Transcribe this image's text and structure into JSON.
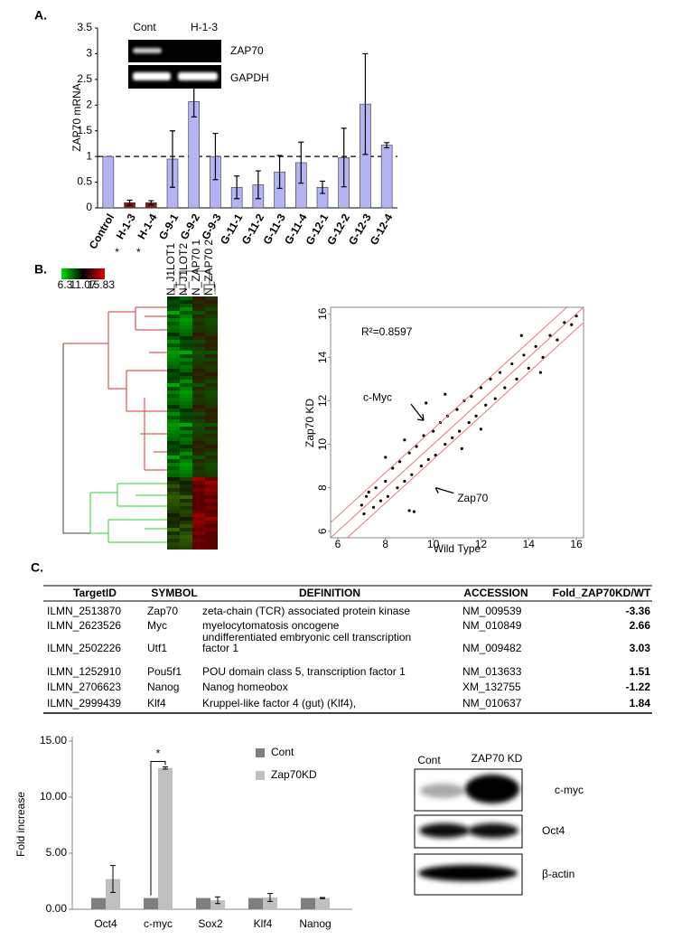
{
  "panel_labels": [
    "A.",
    "B.",
    "C."
  ],
  "chart_data": [
    {
      "type": "bar",
      "ylabel": "ZAP70 mRNA",
      "categories": [
        "Control",
        "H-1-3",
        "H-1-4",
        "G-9-1",
        "G-9-2",
        "G-9-3",
        "G-11-1",
        "G-11-2",
        "G-11-3",
        "G-11-4",
        "G-12-1",
        "G-12-2",
        "G-12-3",
        "G-12-4"
      ],
      "values": [
        1.0,
        0.1,
        0.1,
        0.95,
        2.07,
        1.0,
        0.4,
        0.45,
        0.7,
        0.88,
        0.4,
        0.98,
        2.02,
        1.22
      ],
      "errors": [
        null,
        0.05,
        0.04,
        0.55,
        0.3,
        0.45,
        0.22,
        0.27,
        0.32,
        0.4,
        0.12,
        0.57,
        0.98,
        0.05
      ],
      "bar_colors": [
        "#b4b4f4",
        "#8b1c1c",
        "#8b1c1c",
        "#b4b4f4",
        "#b4b4f4",
        "#b4b4f4",
        "#b4b4f4",
        "#b4b4f4",
        "#b4b4f4",
        "#b4b4f4",
        "#b4b4f4",
        "#b4b4f4",
        "#b4b4f4",
        "#b4b4f4"
      ],
      "category_label_colors": [
        "#000000",
        "#d22020",
        "#d22020",
        "#000000",
        "#000000",
        "#000000",
        "#000000",
        "#000000",
        "#000000",
        "#000000",
        "#000000",
        "#000000",
        "#000000",
        "#000000"
      ],
      "significance": [
        null,
        "*",
        "*",
        null,
        null,
        null,
        null,
        null,
        null,
        null,
        null,
        null,
        null,
        null
      ],
      "reference_line": 1,
      "ylim": [
        0,
        3.5
      ],
      "yticks": [
        0,
        0.5,
        1,
        1.5,
        2,
        2.5,
        3,
        3.5
      ]
    },
    {
      "type": "scatter",
      "xlabel": "Wild Type",
      "ylabel": "Zap70 KD",
      "annotation": "R²=0.8597",
      "color": "#000000",
      "diagonal_offsets": [
        -0.7,
        0,
        0.7
      ],
      "diagonal_color": "#e07a7a",
      "xlim": [
        5.7,
        16.3
      ],
      "ylim": [
        5.7,
        16.3
      ],
      "xticks": [
        6,
        8,
        10,
        12,
        14,
        16
      ],
      "yticks": [
        6,
        8,
        10,
        12,
        14,
        16
      ],
      "x": [
        7,
        7.1,
        7.3,
        7.5,
        7.6,
        7.8,
        8,
        8.1,
        8.3,
        8.5,
        8.6,
        8.8,
        9,
        9.1,
        9.3,
        9.5,
        9.6,
        9.8,
        10,
        10.1,
        10.3,
        10.5,
        10.6,
        10.8,
        11,
        11.1,
        11.3,
        11.5,
        11.6,
        11.8,
        12,
        12.2,
        12.4,
        12.6,
        12.8,
        13,
        13.3,
        13.5,
        13.8,
        14,
        14.3,
        14.6,
        14.9,
        15.2,
        15.5,
        15.8,
        16,
        9.7,
        9.2,
        9.0,
        8.0,
        12,
        10.5,
        7.2,
        8.8,
        11.2,
        13.7,
        14.5
      ],
      "y": [
        7.2,
        6.8,
        7.8,
        7.1,
        8.0,
        7.4,
        8.3,
        7.6,
        8.9,
        8.0,
        9.2,
        8.3,
        9.6,
        8.6,
        9.9,
        9.0,
        10.4,
        9.3,
        10.6,
        9.5,
        11.0,
        10.0,
        11.3,
        10.3,
        11.6,
        10.6,
        12.0,
        11.0,
        12.2,
        11.3,
        12.6,
        11.8,
        13.0,
        12.1,
        13.3,
        12.6,
        13.7,
        13.0,
        14.1,
        13.5,
        14.5,
        14.0,
        15.0,
        14.8,
        15.6,
        15.5,
        15.9,
        11.9,
        6.9,
        6.95,
        9.4,
        10.7,
        12.3,
        7.6,
        10.2,
        9.8,
        15.0,
        13.3
      ],
      "callouts": [
        {
          "label": "c-Myc",
          "x": 9.6,
          "y": 11.1
        },
        {
          "label": "Zap70",
          "x": 10.1,
          "y": 8.0
        }
      ]
    },
    {
      "type": "grouped_bar",
      "ylabel": "Fold increase",
      "categories": [
        "Oct4",
        "c-myc",
        "Sox2",
        "Klf4",
        "Nanog"
      ],
      "series": [
        {
          "name": "Cont",
          "color": "#7f7f7f",
          "values": [
            1,
            1,
            1,
            1,
            1
          ]
        },
        {
          "name": "Zap70KD",
          "color": "#bfbfbf",
          "values": [
            2.7,
            12.6,
            0.8,
            1.05,
            1.0
          ],
          "errors": [
            1.2,
            0.1,
            0.3,
            0.35,
            0.05
          ]
        }
      ],
      "significance": [
        null,
        "*",
        null,
        null,
        null
      ],
      "legend": "top-right",
      "ylim": [
        0,
        15
      ],
      "yticks": [
        {
          "value": 0,
          "label": "0.00"
        },
        {
          "value": 5,
          "label": "5.00"
        },
        {
          "value": 10,
          "label": "10.00"
        },
        {
          "value": 15,
          "label": "15.00"
        }
      ]
    }
  ],
  "inset_gel": {
    "lanes": [
      "Cont",
      "H-1-3"
    ],
    "bands": [
      "ZAP70",
      "GAPDH"
    ]
  },
  "heatmap": {
    "scale_labels": [
      "6.3",
      "11.07",
      "15.83"
    ],
    "columns": [
      "N_J1LOT1",
      "N_J1LOT2",
      "N_ZAP70 1",
      "N_ZAP70 2"
    ]
  },
  "table": {
    "header": [
      "TargetID",
      "SYMBOL",
      "DEFINITION",
      "ACCESSION",
      "Fold_ZAP70KD/WT"
    ],
    "rows": [
      [
        "ILMN_2513870",
        "Zap70",
        "zeta-chain (TCR) associated protein kinase",
        "NM_009539",
        -3.36
      ],
      [
        "ILMN_2623526",
        "Myc",
        "myelocytomatosis oncogene",
        "NM_010849",
        2.66
      ],
      [
        "ILMN_2502226",
        "Utf1",
        [
          "undifferentiated embryonic cell transcription",
          "factor 1"
        ],
        "NM_009482",
        3.03
      ],
      [
        "ILMN_1252910",
        "Pou5f1",
        "POU domain class 5, transcription factor 1",
        "NM_013633",
        1.51
      ],
      [
        "ILMN_2706623",
        "Nanog",
        "Nanog homeobox",
        "XM_132755",
        -1.22
      ],
      [
        "ILMN_2999439",
        "Klf4",
        "Kruppel-like factor 4 (gut) (Klf4),",
        "NM_010637",
        1.84
      ]
    ],
    "fold_colors": [
      "#2e7d32",
      "#e0301e",
      "#e0301e",
      "#000000",
      "#000000",
      "#000000"
    ]
  },
  "western_blot": {
    "lanes": [
      "Cont",
      "ZAP70 KD"
    ],
    "bands": [
      "c-myc",
      "Oct4",
      "β-actin"
    ]
  }
}
